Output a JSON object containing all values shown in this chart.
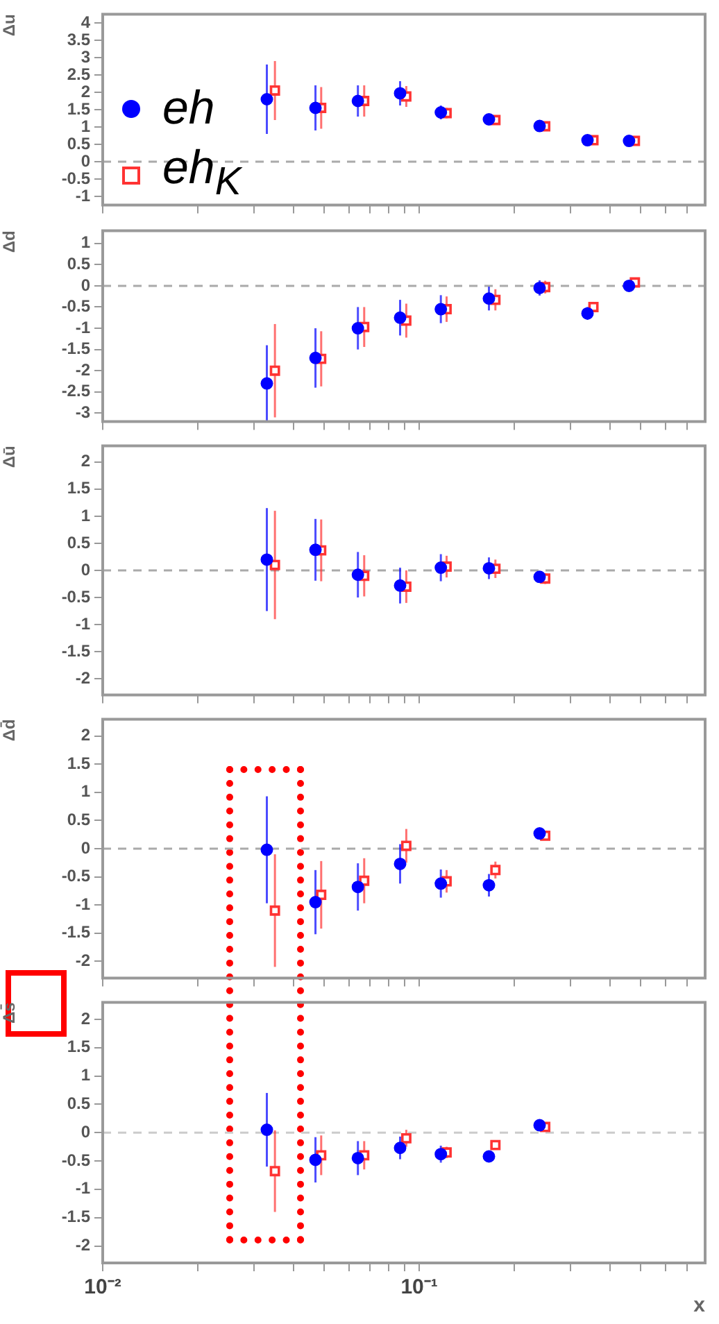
{
  "chart_data": [
    {
      "type": "scatter",
      "ylabel": "Δu",
      "log": "x",
      "xlim": [
        0.01,
        0.8
      ],
      "xticks": [
        0.01,
        0.02,
        0.03,
        0.04,
        0.05,
        0.06,
        0.07,
        0.08,
        0.09,
        0.1,
        0.2,
        0.3,
        0.4,
        0.5,
        0.6,
        0.7
      ],
      "ylim": [
        -1.25,
        4.25
      ],
      "yticks": [
        -1,
        -0.5,
        0,
        0.5,
        1,
        1.5,
        2,
        2.5,
        3,
        3.5,
        4
      ],
      "tick_labels": "y",
      "legend": "left",
      "ref_lines": [
        {
          "axis": "y",
          "value": 0,
          "line_style": "dashed",
          "color": "#aaaaaa"
        }
      ],
      "series": [
        {
          "name": "eh",
          "color": "#0000ff",
          "marker": "circle",
          "x": [
            0.033,
            0.047,
            0.064,
            0.087,
            0.117,
            0.166,
            0.24,
            0.34,
            0.46
          ],
          "values": [
            1.8,
            1.55,
            1.75,
            1.97,
            1.42,
            1.22,
            1.03,
            0.62,
            0.6
          ],
          "errors": [
            1.0,
            0.65,
            0.45,
            0.35,
            0.2,
            0.15,
            0.1,
            0.07,
            0.04
          ]
        },
        {
          "name": "eh$_{K}$",
          "color": "#ff3333",
          "marker": "square",
          "x": [
            0.035,
            0.049,
            0.067,
            0.091,
            0.122,
            0.174,
            0.25,
            0.355,
            0.48
          ],
          "values": [
            2.05,
            1.55,
            1.75,
            1.88,
            1.4,
            1.2,
            1.02,
            0.62,
            0.6
          ],
          "errors": [
            0.85,
            0.6,
            0.45,
            0.3,
            0.15,
            0.12,
            0.08,
            0.05,
            0.04
          ]
        }
      ]
    },
    {
      "type": "scatter",
      "ylabel": "Δd",
      "log": "x",
      "xlim": [
        0.01,
        0.8
      ],
      "xticks": [
        0.01,
        0.02,
        0.03,
        0.04,
        0.05,
        0.06,
        0.07,
        0.08,
        0.09,
        0.1,
        0.2,
        0.3,
        0.4,
        0.5,
        0.6,
        0.7
      ],
      "ylim": [
        -3.2,
        1.3
      ],
      "yticks": [
        -3,
        -2.5,
        -2,
        -1.5,
        -1,
        -0.5,
        0,
        0.5,
        1
      ],
      "tick_labels": "y",
      "ref_lines": [
        {
          "axis": "y",
          "value": 0,
          "line_style": "dashed",
          "color": "#aaaaaa"
        }
      ],
      "series": [
        {
          "color": "#0000ff",
          "marker": "circle",
          "x": [
            0.033,
            0.047,
            0.064,
            0.087,
            0.117,
            0.166,
            0.24,
            0.34,
            0.46
          ],
          "values": [
            -2.3,
            -1.7,
            -1.0,
            -0.75,
            -0.55,
            -0.3,
            -0.05,
            -0.65,
            0.0
          ],
          "errors": [
            0.9,
            0.7,
            0.5,
            0.42,
            0.33,
            0.28,
            0.18,
            0.15,
            0.1
          ]
        },
        {
          "color": "#ff3333",
          "marker": "square",
          "x": [
            0.035,
            0.049,
            0.067,
            0.091,
            0.122,
            0.174,
            0.25,
            0.355,
            0.48
          ],
          "values": [
            -2.0,
            -1.72,
            -0.97,
            -0.82,
            -0.55,
            -0.33,
            -0.03,
            -0.5,
            0.08
          ],
          "errors": [
            1.1,
            0.65,
            0.47,
            0.4,
            0.3,
            0.25,
            0.15,
            0.12,
            0.1
          ]
        }
      ]
    },
    {
      "type": "scatter",
      "ylabel": "Δū",
      "log": "x",
      "xlim": [
        0.01,
        0.8
      ],
      "xticks": [
        0.01,
        0.02,
        0.03,
        0.04,
        0.05,
        0.06,
        0.07,
        0.08,
        0.09,
        0.1,
        0.2,
        0.3,
        0.4,
        0.5,
        0.6,
        0.7
      ],
      "ylim": [
        -2.3,
        2.3
      ],
      "yticks": [
        -2,
        -1.5,
        -1,
        -0.5,
        0,
        0.5,
        1,
        1.5,
        2
      ],
      "tick_labels": "y",
      "ref_lines": [
        {
          "axis": "y",
          "value": 0,
          "line_style": "dashed",
          "color": "#aaaaaa"
        }
      ],
      "series": [
        {
          "color": "#0000ff",
          "marker": "circle",
          "x": [
            0.033,
            0.047,
            0.064,
            0.087,
            0.117,
            0.166,
            0.24
          ],
          "values": [
            0.2,
            0.38,
            -0.08,
            -0.28,
            0.05,
            0.04,
            -0.12
          ],
          "errors": [
            0.95,
            0.57,
            0.42,
            0.33,
            0.25,
            0.2,
            0.1
          ]
        },
        {
          "color": "#ff3333",
          "marker": "square",
          "x": [
            0.035,
            0.049,
            0.067,
            0.091,
            0.122,
            0.174,
            0.25
          ],
          "values": [
            0.1,
            0.37,
            -0.1,
            -0.3,
            0.07,
            0.03,
            -0.15
          ],
          "errors": [
            1.0,
            0.57,
            0.38,
            0.3,
            0.2,
            0.17,
            0.1
          ]
        }
      ]
    },
    {
      "type": "scatter",
      "ylabel": "Δd̄",
      "log": "x",
      "xlim": [
        0.01,
        0.8
      ],
      "xticks": [
        0.01,
        0.02,
        0.03,
        0.04,
        0.05,
        0.06,
        0.07,
        0.08,
        0.09,
        0.1,
        0.2,
        0.3,
        0.4,
        0.5,
        0.6,
        0.7
      ],
      "ylim": [
        -2.3,
        2.3
      ],
      "yticks": [
        -2,
        -1.5,
        -1,
        -0.5,
        0,
        0.5,
        1,
        1.5,
        2
      ],
      "tick_labels": "y",
      "ref_lines": [
        {
          "axis": "y",
          "value": 0,
          "line_style": "dashed",
          "color": "#aaaaaa"
        }
      ],
      "series": [
        {
          "color": "#0000ff",
          "marker": "circle",
          "x": [
            0.033,
            0.047,
            0.064,
            0.087,
            0.117,
            0.166,
            0.24
          ],
          "values": [
            -0.02,
            -0.95,
            -0.68,
            -0.27,
            -0.62,
            -0.65,
            0.27
          ],
          "errors": [
            0.95,
            0.57,
            0.42,
            0.35,
            0.25,
            0.2,
            0.08
          ]
        },
        {
          "color": "#ff3333",
          "marker": "square",
          "x": [
            0.035,
            0.049,
            0.067,
            0.091,
            0.122,
            0.174,
            0.25
          ],
          "values": [
            -1.1,
            -0.82,
            -0.57,
            0.05,
            -0.58,
            -0.38,
            0.23
          ],
          "errors": [
            1.0,
            0.6,
            0.4,
            0.3,
            0.2,
            0.15,
            0.08
          ]
        }
      ]
    },
    {
      "type": "scatter",
      "ylabel": "Δs̄",
      "xlabel": "x",
      "log": "x",
      "xlim": [
        0.01,
        0.8
      ],
      "xticks": [
        {
          "value": 0.01,
          "label": "10⁻²"
        },
        {
          "value": 0.02,
          "label": null
        },
        {
          "value": 0.03,
          "label": null
        },
        {
          "value": 0.04,
          "label": null
        },
        {
          "value": 0.05,
          "label": null
        },
        {
          "value": 0.06,
          "label": null
        },
        {
          "value": 0.07,
          "label": null
        },
        {
          "value": 0.08,
          "label": null
        },
        {
          "value": 0.09,
          "label": null
        },
        {
          "value": 0.1,
          "label": "10⁻¹"
        },
        {
          "value": 0.2,
          "label": null
        },
        {
          "value": 0.3,
          "label": null
        },
        {
          "value": 0.4,
          "label": null
        },
        {
          "value": 0.5,
          "label": null
        },
        {
          "value": 0.6,
          "label": null
        },
        {
          "value": 0.7,
          "label": null
        }
      ],
      "ylim": [
        -2.3,
        2.3
      ],
      "yticks": [
        -2,
        -1.5,
        -1,
        -0.5,
        0,
        0.5,
        1,
        1.5,
        2
      ],
      "ref_lines": [
        {
          "axis": "y",
          "value": 0,
          "line_style": "dashed",
          "color": "#cccccc"
        }
      ],
      "series": [
        {
          "color": "#0000ff",
          "marker": "circle",
          "x": [
            0.033,
            0.047,
            0.064,
            0.087,
            0.117,
            0.166,
            0.24
          ],
          "values": [
            0.05,
            -0.48,
            -0.45,
            -0.27,
            -0.38,
            -0.42,
            0.13
          ],
          "errors": [
            0.65,
            0.4,
            0.3,
            0.2,
            0.15,
            0.1,
            0.05
          ]
        },
        {
          "color": "#ff3333",
          "marker": "square",
          "x": [
            0.035,
            0.049,
            0.067,
            0.091,
            0.122,
            0.174,
            0.25
          ],
          "values": [
            -0.68,
            -0.4,
            -0.4,
            -0.1,
            -0.35,
            -0.22,
            0.1
          ],
          "errors": [
            0.72,
            0.35,
            0.25,
            0.15,
            0.1,
            0.07,
            0.05
          ]
        }
      ]
    }
  ]
}
